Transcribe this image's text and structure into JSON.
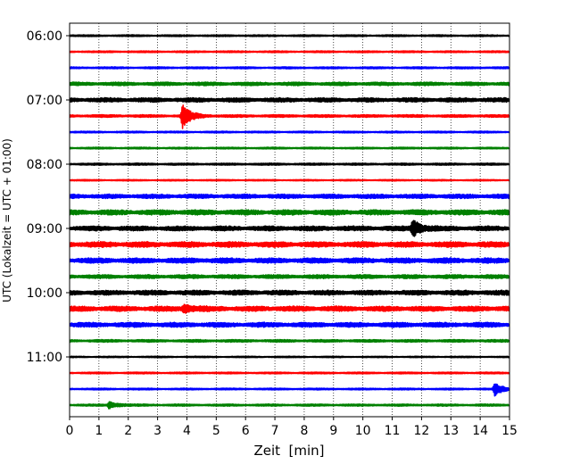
{
  "chart_data": {
    "type": "line",
    "title": "",
    "xlabel": "Zeit  [min]",
    "ylabel": "UTC (Lokalzeit = UTC + 01:00)",
    "xlim": [
      0,
      15
    ],
    "x_ticks": [
      "0",
      "1",
      "2",
      "3",
      "4",
      "5",
      "6",
      "7",
      "8",
      "9",
      "10",
      "11",
      "12",
      "13",
      "14",
      "15"
    ],
    "y_tick_labels": [
      "06:00",
      "07:00",
      "08:00",
      "09:00",
      "10:00",
      "11:00"
    ],
    "grid": "vertical dotted lines at each minute",
    "colors": [
      "#000000",
      "#ff0000",
      "#0000ff",
      "#008000"
    ],
    "series": [
      {
        "start": "06:00",
        "color": "black",
        "amplitude": 0.1,
        "events": []
      },
      {
        "start": "06:15",
        "color": "red",
        "amplitude": 0.1,
        "events": []
      },
      {
        "start": "06:30",
        "color": "blue",
        "amplitude": 0.11,
        "events": []
      },
      {
        "start": "06:45",
        "color": "green",
        "amplitude": 0.2,
        "events": []
      },
      {
        "start": "07:00",
        "color": "black",
        "amplitude": 0.25,
        "events": []
      },
      {
        "start": "07:15",
        "color": "red",
        "amplitude": 0.15,
        "events": [
          {
            "t": 3.85,
            "amp": 1.3
          }
        ]
      },
      {
        "start": "07:30",
        "color": "blue",
        "amplitude": 0.1,
        "events": []
      },
      {
        "start": "07:45",
        "color": "green",
        "amplitude": 0.1,
        "events": []
      },
      {
        "start": "08:00",
        "color": "black",
        "amplitude": 0.12,
        "events": []
      },
      {
        "start": "08:15",
        "color": "red",
        "amplitude": 0.08,
        "events": []
      },
      {
        "start": "08:30",
        "color": "blue",
        "amplitude": 0.25,
        "events": []
      },
      {
        "start": "08:45",
        "color": "green",
        "amplitude": 0.3,
        "events": []
      },
      {
        "start": "09:00",
        "color": "black",
        "amplitude": 0.28,
        "events": [
          {
            "t": 11.7,
            "amp": 0.95
          }
        ]
      },
      {
        "start": "09:15",
        "color": "red",
        "amplitude": 0.32,
        "events": []
      },
      {
        "start": "09:30",
        "color": "blue",
        "amplitude": 0.3,
        "events": []
      },
      {
        "start": "09:45",
        "color": "green",
        "amplitude": 0.22,
        "events": []
      },
      {
        "start": "10:00",
        "color": "black",
        "amplitude": 0.28,
        "events": []
      },
      {
        "start": "10:15",
        "color": "red",
        "amplitude": 0.3,
        "events": [
          {
            "t": 3.9,
            "amp": 0.45
          }
        ]
      },
      {
        "start": "10:30",
        "color": "blue",
        "amplitude": 0.28,
        "events": []
      },
      {
        "start": "10:45",
        "color": "green",
        "amplitude": 0.15,
        "events": []
      },
      {
        "start": "11:00",
        "color": "black",
        "amplitude": 0.08,
        "events": []
      },
      {
        "start": "11:15",
        "color": "red",
        "amplitude": 0.1,
        "events": []
      },
      {
        "start": "11:30",
        "color": "blue",
        "amplitude": 0.1,
        "events": [
          {
            "t": 14.5,
            "amp": 0.7
          }
        ]
      },
      {
        "start": "11:45",
        "color": "green",
        "amplitude": 0.12,
        "events": [
          {
            "t": 1.35,
            "amp": 0.4
          }
        ]
      }
    ]
  }
}
